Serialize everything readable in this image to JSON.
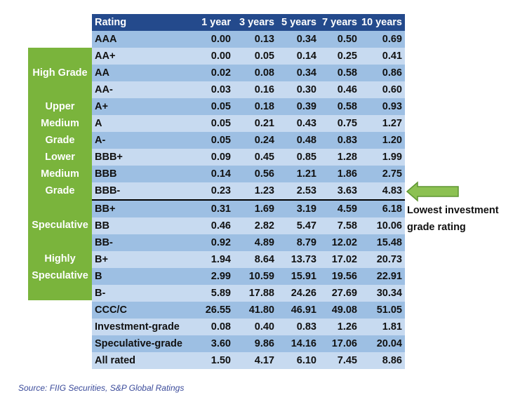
{
  "table": {
    "columns": [
      "Rating",
      "1 year",
      "3 years",
      "5 years",
      "7 years",
      "10 years"
    ],
    "rows": [
      [
        "AAA",
        "0.00",
        "0.13",
        "0.34",
        "0.50",
        "0.69"
      ],
      [
        "AA+",
        "0.00",
        "0.05",
        "0.14",
        "0.25",
        "0.41"
      ],
      [
        "AA",
        "0.02",
        "0.08",
        "0.34",
        "0.58",
        "0.86"
      ],
      [
        "AA-",
        "0.03",
        "0.16",
        "0.30",
        "0.46",
        "0.60"
      ],
      [
        "A+",
        "0.05",
        "0.18",
        "0.39",
        "0.58",
        "0.93"
      ],
      [
        "A",
        "0.05",
        "0.21",
        "0.43",
        "0.75",
        "1.27"
      ],
      [
        "A-",
        "0.05",
        "0.24",
        "0.48",
        "0.83",
        "1.20"
      ],
      [
        "BBB+",
        "0.09",
        "0.45",
        "0.85",
        "1.28",
        "1.99"
      ],
      [
        "BBB",
        "0.14",
        "0.56",
        "1.21",
        "1.86",
        "2.75"
      ],
      [
        "BBB-",
        "0.23",
        "1.23",
        "2.53",
        "3.63",
        "4.83"
      ],
      [
        "BB+",
        "0.31",
        "1.69",
        "3.19",
        "4.59",
        "6.18"
      ],
      [
        "BB",
        "0.46",
        "2.82",
        "5.47",
        "7.58",
        "10.06"
      ],
      [
        "BB-",
        "0.92",
        "4.89",
        "8.79",
        "12.02",
        "15.48"
      ],
      [
        "B+",
        "1.94",
        "8.64",
        "13.73",
        "17.02",
        "20.73"
      ],
      [
        "B",
        "2.99",
        "10.59",
        "15.91",
        "19.56",
        "22.91"
      ],
      [
        "B-",
        "5.89",
        "17.88",
        "24.26",
        "27.69",
        "30.34"
      ],
      [
        "CCC/C",
        "26.55",
        "41.80",
        "46.91",
        "49.08",
        "51.05"
      ],
      [
        "Investment-grade",
        "0.08",
        "0.40",
        "0.83",
        "1.26",
        "1.81"
      ],
      [
        "Speculative-grade",
        "3.60",
        "9.86",
        "14.16",
        "17.06",
        "20.04"
      ],
      [
        "All rated",
        "1.50",
        "4.17",
        "6.10",
        "7.45",
        "8.86"
      ]
    ]
  },
  "grade_labels": {
    "high_grade": "High Grade",
    "upper_medium_1": "Upper",
    "upper_medium_2": "Medium",
    "upper_medium_3": "Grade",
    "lower_medium_1": "Lower",
    "lower_medium_2": "Medium",
    "lower_medium_3": "Grade",
    "speculative": "Speculative",
    "highly_speculative_1": "Highly",
    "highly_speculative_2": "Speculative"
  },
  "callout": {
    "line1": "Lowest investment",
    "line2": "grade rating",
    "arrow_icon": "left-arrow-icon",
    "arrow_color": "#8cc152"
  },
  "source": "Source: FIIG Securities, S&P Global Ratings",
  "colors": {
    "header_bg": "#244a8c",
    "row_dark": "#9dbfe3",
    "row_light": "#c7daf0",
    "grade_band": "#7ab43c"
  }
}
